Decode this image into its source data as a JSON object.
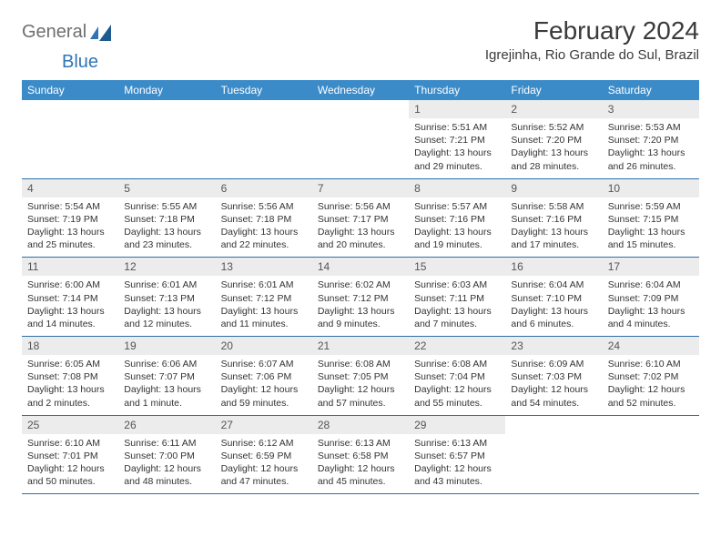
{
  "logo": {
    "text1": "General",
    "text2": "Blue"
  },
  "header": {
    "month_title": "February 2024",
    "location": "Igrejinha, Rio Grande do Sul, Brazil"
  },
  "theme": {
    "header_bg": "#3b8bc9",
    "header_text": "#ffffff",
    "daynum_bg": "#ececec",
    "row_border": "#2f6fa8",
    "brand_blue": "#2f75b5",
    "brand_gray": "#6e6e6e"
  },
  "calendar": {
    "day_headers": [
      "Sunday",
      "Monday",
      "Tuesday",
      "Wednesday",
      "Thursday",
      "Friday",
      "Saturday"
    ],
    "weeks": [
      [
        {
          "empty": true
        },
        {
          "empty": true
        },
        {
          "empty": true
        },
        {
          "empty": true
        },
        {
          "day": "1",
          "sunrise": "5:51 AM",
          "sunset": "7:21 PM",
          "daylight": "13 hours and 29 minutes."
        },
        {
          "day": "2",
          "sunrise": "5:52 AM",
          "sunset": "7:20 PM",
          "daylight": "13 hours and 28 minutes."
        },
        {
          "day": "3",
          "sunrise": "5:53 AM",
          "sunset": "7:20 PM",
          "daylight": "13 hours and 26 minutes."
        }
      ],
      [
        {
          "day": "4",
          "sunrise": "5:54 AM",
          "sunset": "7:19 PM",
          "daylight": "13 hours and 25 minutes."
        },
        {
          "day": "5",
          "sunrise": "5:55 AM",
          "sunset": "7:18 PM",
          "daylight": "13 hours and 23 minutes."
        },
        {
          "day": "6",
          "sunrise": "5:56 AM",
          "sunset": "7:18 PM",
          "daylight": "13 hours and 22 minutes."
        },
        {
          "day": "7",
          "sunrise": "5:56 AM",
          "sunset": "7:17 PM",
          "daylight": "13 hours and 20 minutes."
        },
        {
          "day": "8",
          "sunrise": "5:57 AM",
          "sunset": "7:16 PM",
          "daylight": "13 hours and 19 minutes."
        },
        {
          "day": "9",
          "sunrise": "5:58 AM",
          "sunset": "7:16 PM",
          "daylight": "13 hours and 17 minutes."
        },
        {
          "day": "10",
          "sunrise": "5:59 AM",
          "sunset": "7:15 PM",
          "daylight": "13 hours and 15 minutes."
        }
      ],
      [
        {
          "day": "11",
          "sunrise": "6:00 AM",
          "sunset": "7:14 PM",
          "daylight": "13 hours and 14 minutes."
        },
        {
          "day": "12",
          "sunrise": "6:01 AM",
          "sunset": "7:13 PM",
          "daylight": "13 hours and 12 minutes."
        },
        {
          "day": "13",
          "sunrise": "6:01 AM",
          "sunset": "7:12 PM",
          "daylight": "13 hours and 11 minutes."
        },
        {
          "day": "14",
          "sunrise": "6:02 AM",
          "sunset": "7:12 PM",
          "daylight": "13 hours and 9 minutes."
        },
        {
          "day": "15",
          "sunrise": "6:03 AM",
          "sunset": "7:11 PM",
          "daylight": "13 hours and 7 minutes."
        },
        {
          "day": "16",
          "sunrise": "6:04 AM",
          "sunset": "7:10 PM",
          "daylight": "13 hours and 6 minutes."
        },
        {
          "day": "17",
          "sunrise": "6:04 AM",
          "sunset": "7:09 PM",
          "daylight": "13 hours and 4 minutes."
        }
      ],
      [
        {
          "day": "18",
          "sunrise": "6:05 AM",
          "sunset": "7:08 PM",
          "daylight": "13 hours and 2 minutes."
        },
        {
          "day": "19",
          "sunrise": "6:06 AM",
          "sunset": "7:07 PM",
          "daylight": "13 hours and 1 minute."
        },
        {
          "day": "20",
          "sunrise": "6:07 AM",
          "sunset": "7:06 PM",
          "daylight": "12 hours and 59 minutes."
        },
        {
          "day": "21",
          "sunrise": "6:08 AM",
          "sunset": "7:05 PM",
          "daylight": "12 hours and 57 minutes."
        },
        {
          "day": "22",
          "sunrise": "6:08 AM",
          "sunset": "7:04 PM",
          "daylight": "12 hours and 55 minutes."
        },
        {
          "day": "23",
          "sunrise": "6:09 AM",
          "sunset": "7:03 PM",
          "daylight": "12 hours and 54 minutes."
        },
        {
          "day": "24",
          "sunrise": "6:10 AM",
          "sunset": "7:02 PM",
          "daylight": "12 hours and 52 minutes."
        }
      ],
      [
        {
          "day": "25",
          "sunrise": "6:10 AM",
          "sunset": "7:01 PM",
          "daylight": "12 hours and 50 minutes."
        },
        {
          "day": "26",
          "sunrise": "6:11 AM",
          "sunset": "7:00 PM",
          "daylight": "12 hours and 48 minutes."
        },
        {
          "day": "27",
          "sunrise": "6:12 AM",
          "sunset": "6:59 PM",
          "daylight": "12 hours and 47 minutes."
        },
        {
          "day": "28",
          "sunrise": "6:13 AM",
          "sunset": "6:58 PM",
          "daylight": "12 hours and 45 minutes."
        },
        {
          "day": "29",
          "sunrise": "6:13 AM",
          "sunset": "6:57 PM",
          "daylight": "12 hours and 43 minutes."
        },
        {
          "empty": true
        },
        {
          "empty": true
        }
      ]
    ],
    "labels": {
      "sunrise_prefix": "Sunrise: ",
      "sunset_prefix": "Sunset: ",
      "daylight_prefix": "Daylight: "
    }
  }
}
